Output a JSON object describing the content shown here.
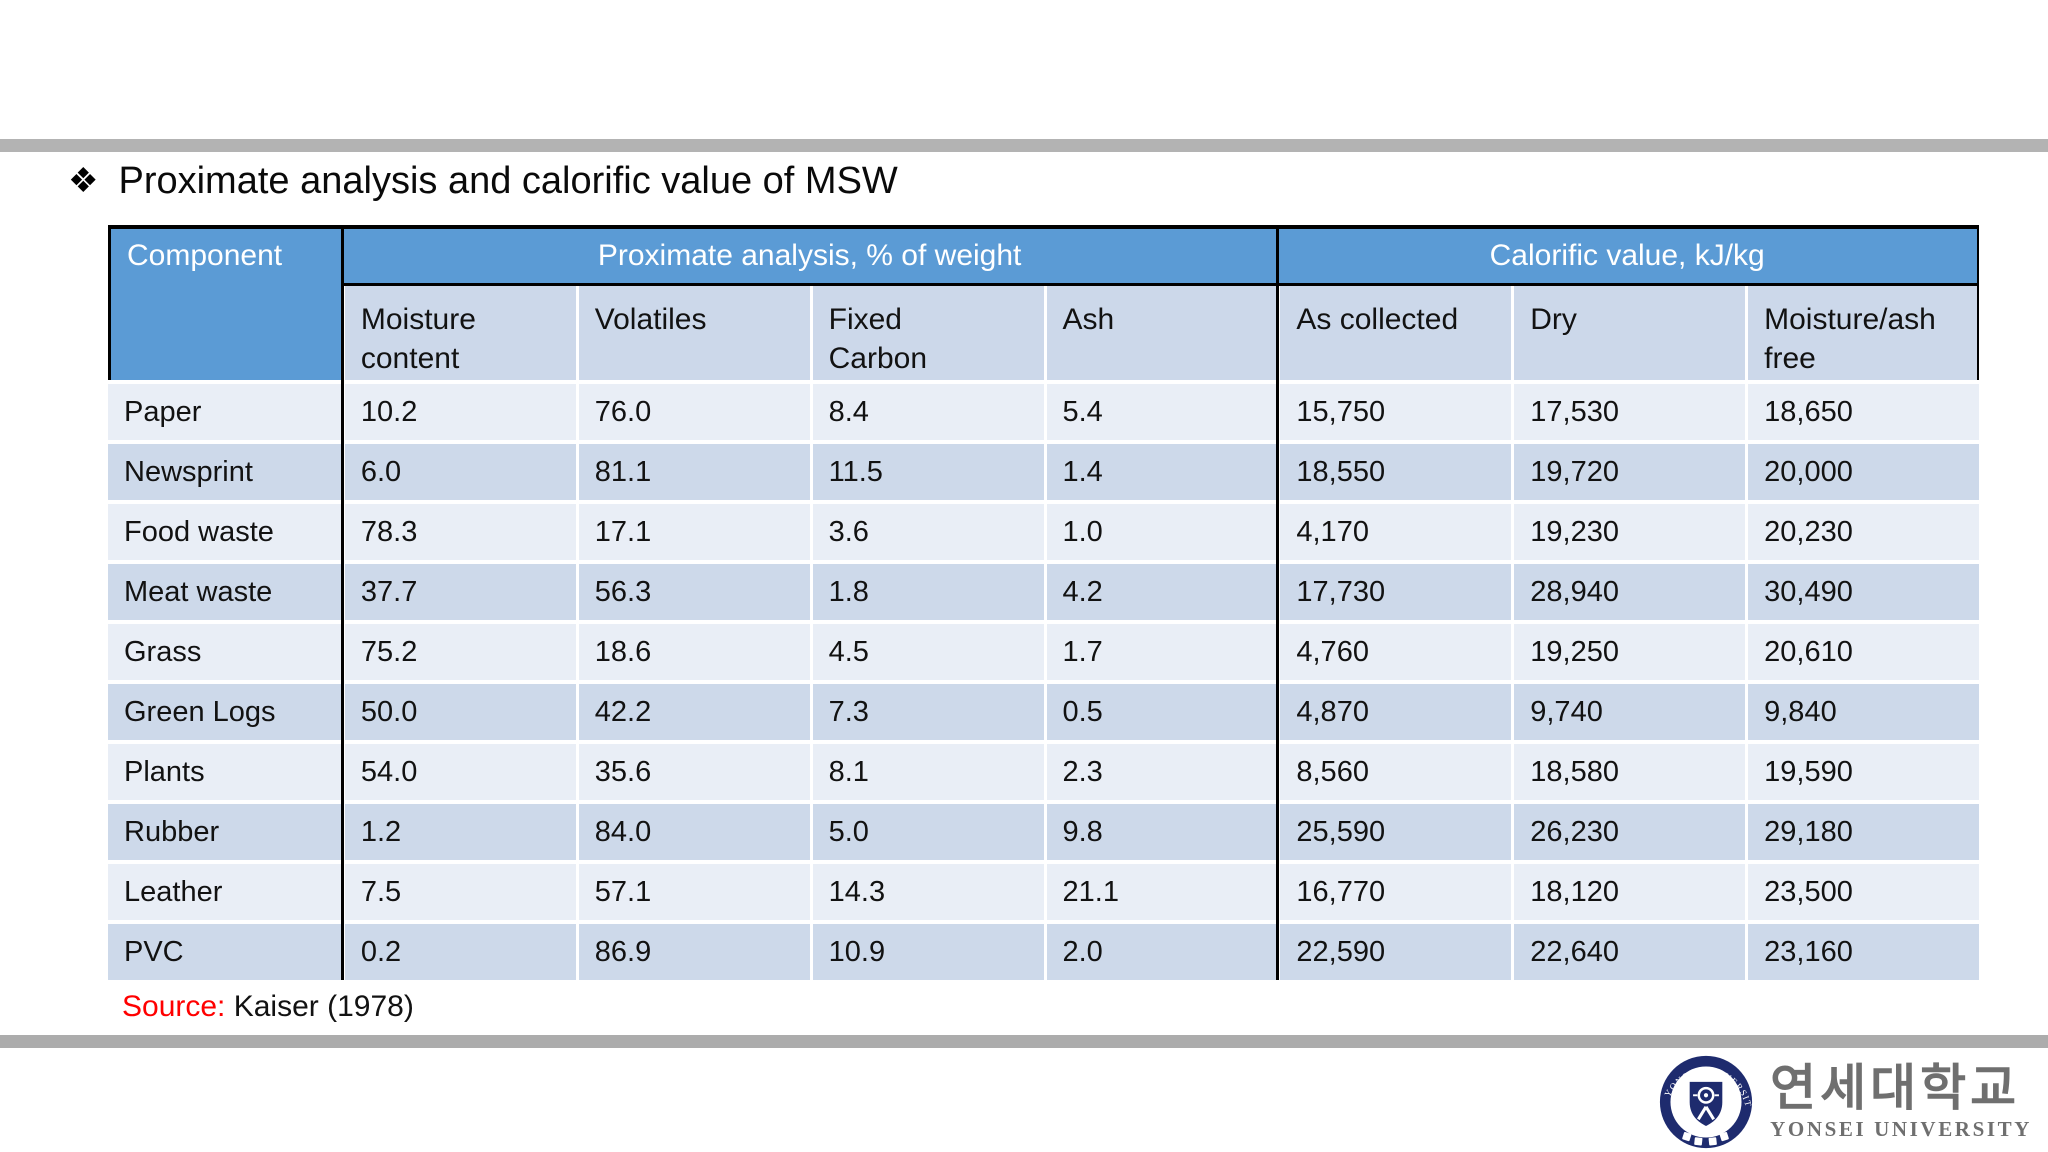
{
  "slide": {
    "bullet_glyph": "❖",
    "title": "Proximate analysis and calorific value of MSW",
    "source_label": "Source:",
    "source_citation": "Kaiser (1978)"
  },
  "table": {
    "corner_header": "Component",
    "group_headers": [
      {
        "label": "Proximate analysis, % of weight",
        "span": 4
      },
      {
        "label": "Calorific value, kJ/kg",
        "span": 3
      }
    ],
    "sub_headers": [
      "Moisture content",
      "Volatiles",
      "Fixed Carbon",
      "Ash",
      "As collected",
      "Dry",
      "Moisture/ash free"
    ],
    "rows": [
      {
        "component": "Paper",
        "values": [
          "10.2",
          "76.0",
          "8.4",
          "5.4",
          "15,750",
          "17,530",
          "18,650"
        ]
      },
      {
        "component": "Newsprint",
        "values": [
          "6.0",
          "81.1",
          "11.5",
          "1.4",
          "18,550",
          "19,720",
          "20,000"
        ]
      },
      {
        "component": "Food waste",
        "values": [
          "78.3",
          "17.1",
          "3.6",
          "1.0",
          "4,170",
          "19,230",
          "20,230"
        ]
      },
      {
        "component": "Meat waste",
        "values": [
          "37.7",
          "56.3",
          "1.8",
          "4.2",
          "17,730",
          "28,940",
          "30,490"
        ]
      },
      {
        "component": "Grass",
        "values": [
          "75.2",
          "18.6",
          "4.5",
          "1.7",
          "4,760",
          "19,250",
          "20,610"
        ]
      },
      {
        "component": "Green Logs",
        "values": [
          "50.0",
          "42.2",
          "7.3",
          "0.5",
          "4,870",
          "9,740",
          "9,840"
        ]
      },
      {
        "component": "Plants",
        "values": [
          "54.0",
          "35.6",
          "8.1",
          "2.3",
          "8,560",
          "18,580",
          "19,590"
        ]
      },
      {
        "component": "Rubber",
        "values": [
          "1.2",
          "84.0",
          "5.0",
          "9.8",
          "25,590",
          "26,230",
          "29,180"
        ]
      },
      {
        "component": "Leather",
        "values": [
          "7.5",
          "57.1",
          "14.3",
          "21.1",
          "16,770",
          "18,120",
          "23,500"
        ]
      },
      {
        "component": "PVC",
        "values": [
          "0.2",
          "86.9",
          "10.9",
          "2.0",
          "22,590",
          "22,640",
          "23,160"
        ]
      }
    ]
  },
  "logo": {
    "seal_ring_text": "YONSEI UNIVERSITY",
    "korean_name": "연세대학교",
    "english_name": "YONSEI UNIVERSITY"
  },
  "colors": {
    "header_blue": "#5B9BD5",
    "subheader_bg": "#CCD8EA",
    "row_light": "#E9EEF6",
    "row_dark": "#CDD9EA",
    "divider_black": "#000000",
    "grid_white": "#FFFFFF",
    "bar_gray": "#B3B3B3",
    "source_red": "#FF0000",
    "logo_navy": "#1E2B6E",
    "logo_gray": "#6F6F6F"
  }
}
